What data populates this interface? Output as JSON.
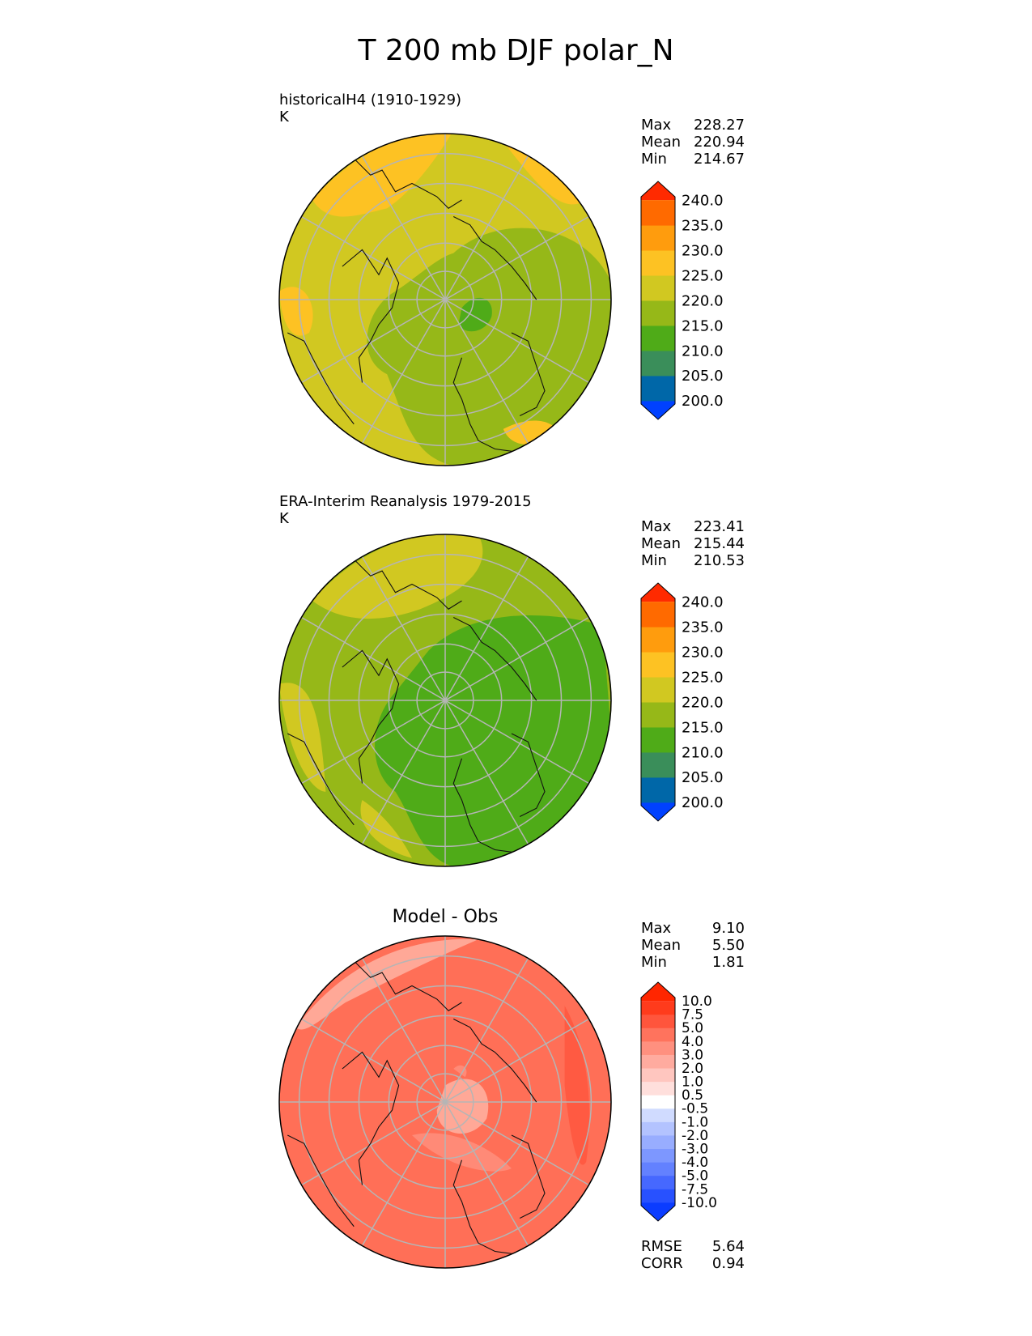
{
  "title": "T 200 mb DJF polar_N",
  "chart_data": [
    {
      "type": "heatmap",
      "projection": "north polar stereographic",
      "title": "historicalH4 (1910-1929)",
      "units": "K",
      "stats": {
        "Max": "228.27",
        "Mean": "220.94",
        "Min": "214.67"
      },
      "colorbar": {
        "levels": [
          "200.0",
          "205.0",
          "210.0",
          "215.0",
          "220.0",
          "225.0",
          "230.0",
          "235.0",
          "240.0"
        ],
        "colors": [
          "#0041ff",
          "#0067a8",
          "#3a8e5a",
          "#4fab18",
          "#96b818",
          "#d1c821",
          "#fdc223",
          "#ff9c0d",
          "#ff6a00",
          "#ff2a00"
        ]
      },
      "field": {
        "background": "#d1c821",
        "regions": [
          {
            "level": "215-220",
            "color": "#96b818"
          },
          {
            "level": "225-230",
            "color": "#fdc223"
          },
          {
            "level": "210-215",
            "color": "#4fab18"
          }
        ]
      }
    },
    {
      "type": "heatmap",
      "projection": "north polar stereographic",
      "title": "ERA-Interim Reanalysis 1979-2015",
      "units": "K",
      "stats": {
        "Max": "223.41",
        "Mean": "215.44",
        "Min": "210.53"
      },
      "colorbar": {
        "levels": [
          "200.0",
          "205.0",
          "210.0",
          "215.0",
          "220.0",
          "225.0",
          "230.0",
          "235.0",
          "240.0"
        ],
        "colors": [
          "#0041ff",
          "#0067a8",
          "#3a8e5a",
          "#4fab18",
          "#96b818",
          "#d1c821",
          "#fdc223",
          "#ff9c0d",
          "#ff6a00",
          "#ff2a00"
        ]
      },
      "field": {
        "background": "#96b818",
        "regions": [
          {
            "level": "220-225",
            "color": "#d1c821"
          },
          {
            "level": "210-215",
            "color": "#4fab18"
          }
        ]
      }
    },
    {
      "type": "heatmap",
      "projection": "north polar stereographic",
      "title": "Model - Obs",
      "stats": {
        "Max": "9.10",
        "Mean": "5.50",
        "Min": "1.81"
      },
      "bottom_stats": {
        "RMSE": "5.64",
        "CORR": "0.94"
      },
      "colorbar": {
        "levels": [
          "-10.0",
          "-7.5",
          "-5.0",
          "-4.0",
          "-3.0",
          "-2.0",
          "-1.0",
          "-0.5",
          "0.5",
          "1.0",
          "2.0",
          "3.0",
          "4.0",
          "5.0",
          "7.5",
          "10.0"
        ],
        "colors": [
          "#0b3cff",
          "#2851ff",
          "#4668ff",
          "#6381ff",
          "#7d97ff",
          "#98adff",
          "#b3c3ff",
          "#d0dbff",
          "#ffffff",
          "#ffdfdc",
          "#ffc6bf",
          "#ffab9f",
          "#ff907f",
          "#ff735d",
          "#ff553c",
          "#ff3b1c",
          "#ff2600"
        ]
      },
      "field": {
        "background": "#ff6f57",
        "regions": [
          {
            "level": "5.0-7.5",
            "color": "#ff5a42"
          },
          {
            "level": "3.0-4.0",
            "color": "#ffa897"
          },
          {
            "level": "4.0-5.0",
            "color": "#ff8a77"
          }
        ]
      }
    }
  ]
}
